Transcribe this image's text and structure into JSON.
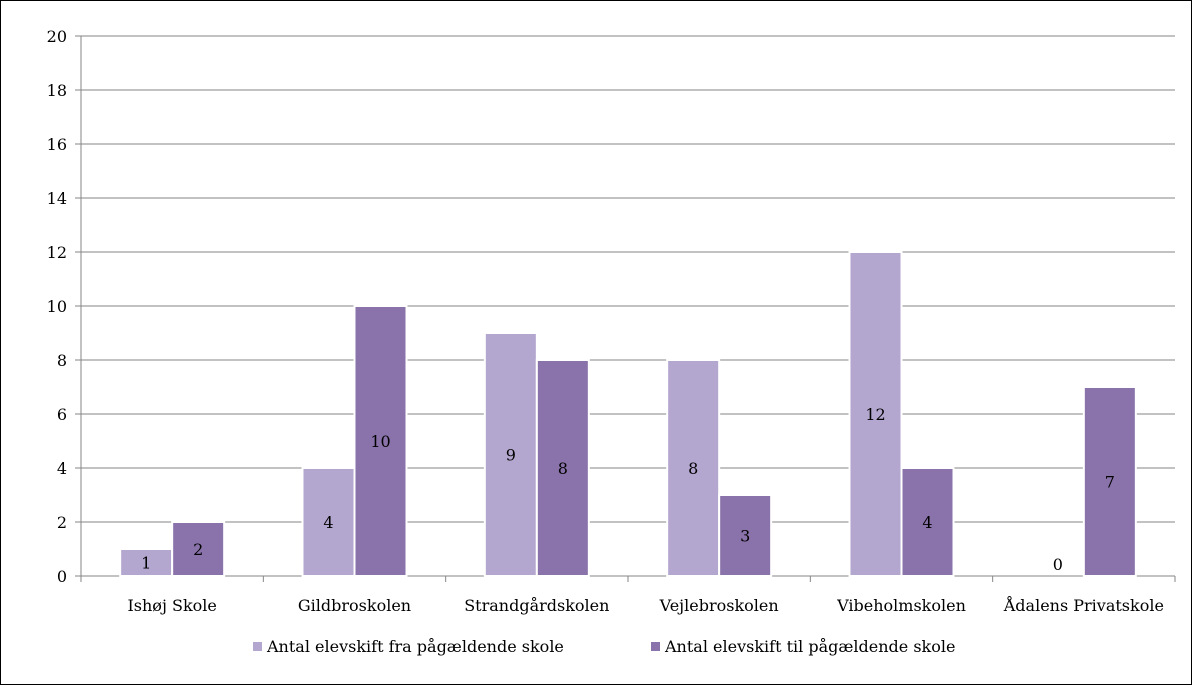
{
  "chart_data": {
    "type": "bar",
    "title": "",
    "xlabel": "",
    "ylabel": "",
    "categories": [
      "Ishøj Skole",
      "Gildbroskolen",
      "Strandgårdskolen",
      "Vejlebroskolen",
      "Vibeholmskolen",
      "Ådalens Privatskole"
    ],
    "series": [
      {
        "name": "Antal elevskift fra pågældende skole",
        "values": [
          1,
          4,
          9,
          8,
          12,
          0
        ],
        "color": "#b3a6cf"
      },
      {
        "name": "Antal elevskift til pågældende skole",
        "values": [
          2,
          10,
          8,
          3,
          4,
          7
        ],
        "color": "#8a73ab"
      }
    ],
    "ylim": [
      0,
      20
    ],
    "yticks": [
      0,
      2,
      4,
      6,
      8,
      10,
      12,
      14,
      16,
      18,
      20
    ],
    "grid": true,
    "legend_position": "bottom",
    "data_labels": true
  }
}
